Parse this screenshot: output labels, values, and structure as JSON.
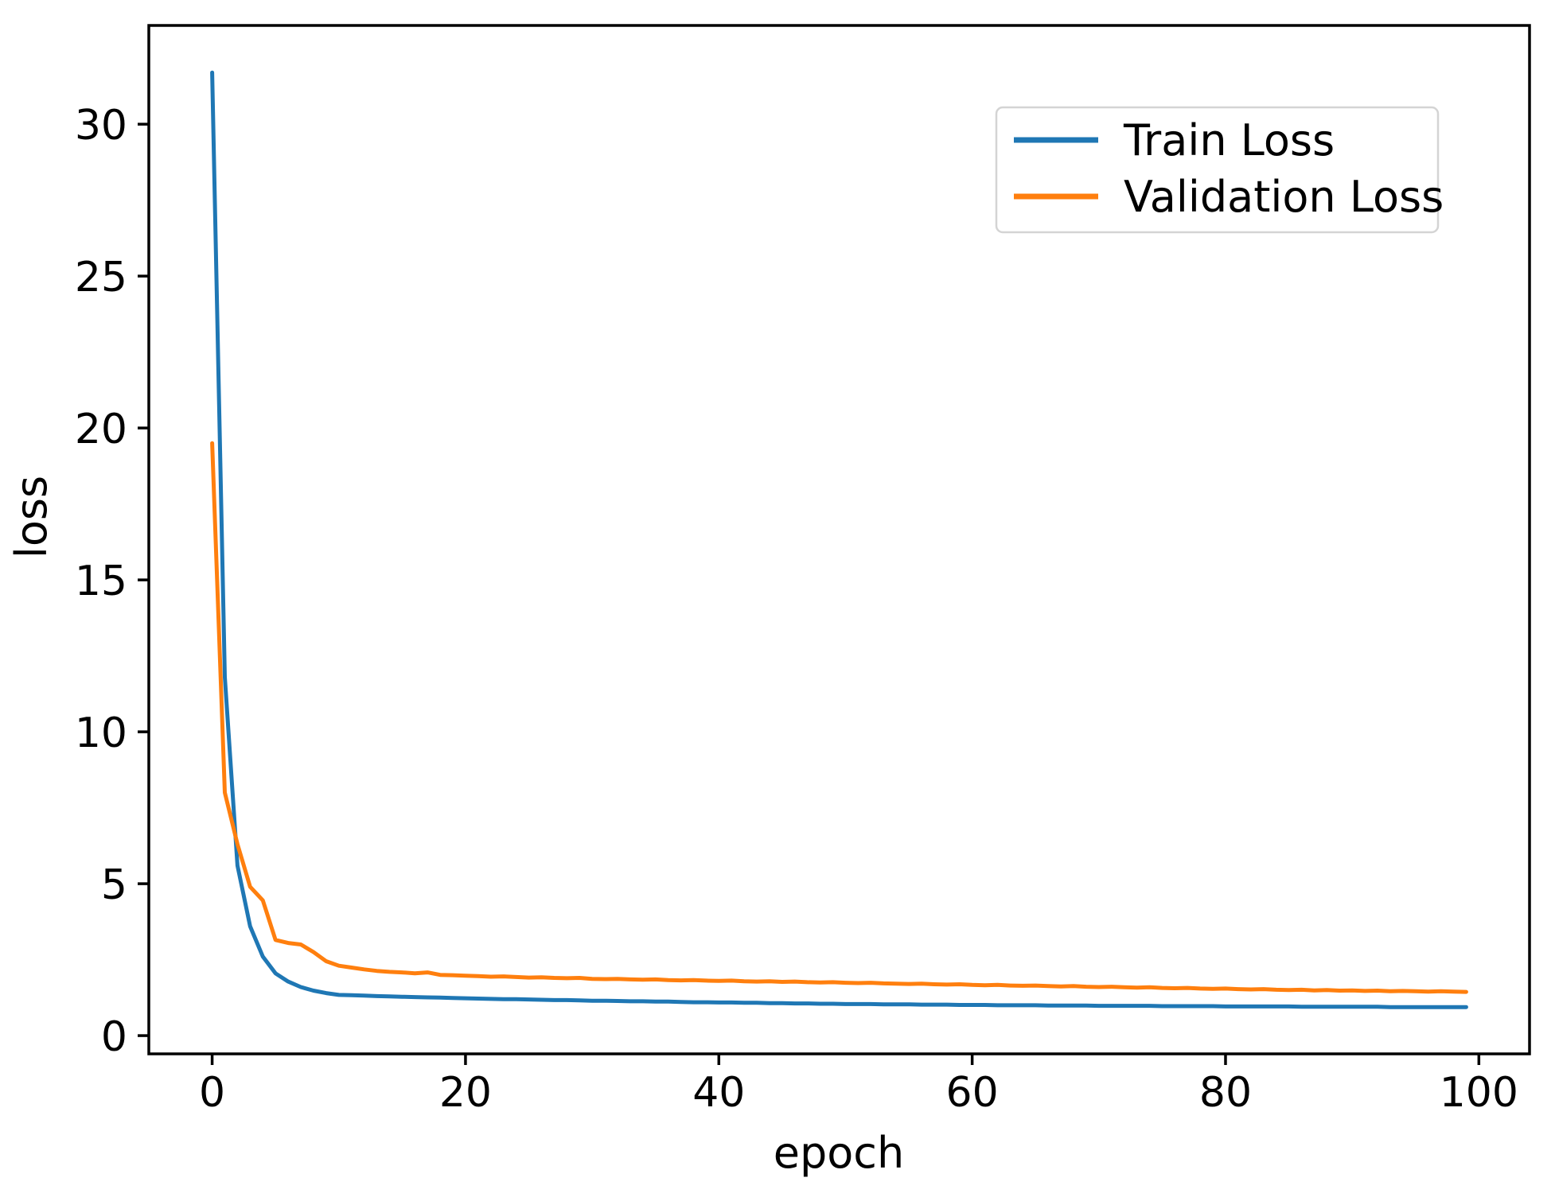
{
  "figure": {
    "background": "#ffffff",
    "frame_color": "#000000"
  },
  "chart_data": {
    "type": "line",
    "title": "",
    "xlabel": "epoch",
    "ylabel": "loss",
    "xlim": [
      -5,
      104
    ],
    "ylim": [
      -0.6,
      33.25
    ],
    "xticks": [
      0,
      20,
      40,
      60,
      80,
      100
    ],
    "yticks": [
      0,
      5,
      10,
      15,
      20,
      25,
      30
    ],
    "grid": false,
    "legend_position": "upper right",
    "x": [
      0,
      1,
      2,
      3,
      4,
      5,
      6,
      7,
      8,
      9,
      10,
      11,
      12,
      13,
      14,
      15,
      16,
      17,
      18,
      19,
      20,
      21,
      22,
      23,
      24,
      25,
      26,
      27,
      28,
      29,
      30,
      31,
      32,
      33,
      34,
      35,
      36,
      37,
      38,
      39,
      40,
      41,
      42,
      43,
      44,
      45,
      46,
      47,
      48,
      49,
      50,
      51,
      52,
      53,
      54,
      55,
      56,
      57,
      58,
      59,
      60,
      61,
      62,
      63,
      64,
      65,
      66,
      67,
      68,
      69,
      70,
      71,
      72,
      73,
      74,
      75,
      76,
      77,
      78,
      79,
      80,
      81,
      82,
      83,
      84,
      85,
      86,
      87,
      88,
      89,
      90,
      91,
      92,
      93,
      94,
      95,
      96,
      97,
      98,
      99
    ],
    "series": [
      {
        "name": "Train Loss",
        "color": "#1f77b4",
        "values": [
          31.7,
          11.8,
          5.6,
          3.6,
          2.6,
          2.05,
          1.78,
          1.6,
          1.48,
          1.4,
          1.34,
          1.33,
          1.32,
          1.3,
          1.29,
          1.28,
          1.27,
          1.26,
          1.25,
          1.24,
          1.23,
          1.22,
          1.21,
          1.2,
          1.2,
          1.19,
          1.18,
          1.17,
          1.17,
          1.16,
          1.15,
          1.15,
          1.14,
          1.13,
          1.13,
          1.12,
          1.12,
          1.11,
          1.1,
          1.1,
          1.09,
          1.09,
          1.08,
          1.08,
          1.07,
          1.07,
          1.06,
          1.06,
          1.05,
          1.05,
          1.04,
          1.04,
          1.04,
          1.03,
          1.03,
          1.03,
          1.02,
          1.02,
          1.02,
          1.01,
          1.01,
          1.01,
          1.0,
          1.0,
          1.0,
          1.0,
          0.99,
          0.99,
          0.99,
          0.99,
          0.98,
          0.98,
          0.98,
          0.98,
          0.98,
          0.97,
          0.97,
          0.97,
          0.97,
          0.97,
          0.96,
          0.96,
          0.96,
          0.96,
          0.96,
          0.96,
          0.95,
          0.95,
          0.95,
          0.95,
          0.95,
          0.95,
          0.95,
          0.94,
          0.94,
          0.94,
          0.94,
          0.94,
          0.94,
          0.94
        ]
      },
      {
        "name": "Validation Loss",
        "color": "#ff7f0e",
        "values": [
          19.5,
          8.0,
          6.3,
          4.9,
          4.45,
          3.15,
          3.05,
          3.0,
          2.75,
          2.45,
          2.3,
          2.24,
          2.18,
          2.13,
          2.1,
          2.08,
          2.05,
          2.08,
          2.0,
          1.99,
          1.97,
          1.96,
          1.94,
          1.95,
          1.93,
          1.91,
          1.92,
          1.9,
          1.89,
          1.9,
          1.87,
          1.86,
          1.87,
          1.85,
          1.84,
          1.85,
          1.83,
          1.82,
          1.83,
          1.81,
          1.8,
          1.81,
          1.79,
          1.78,
          1.79,
          1.77,
          1.78,
          1.76,
          1.75,
          1.76,
          1.74,
          1.73,
          1.74,
          1.72,
          1.71,
          1.7,
          1.71,
          1.69,
          1.68,
          1.69,
          1.67,
          1.66,
          1.67,
          1.65,
          1.64,
          1.65,
          1.63,
          1.62,
          1.63,
          1.61,
          1.6,
          1.61,
          1.59,
          1.58,
          1.59,
          1.57,
          1.56,
          1.57,
          1.55,
          1.54,
          1.55,
          1.53,
          1.52,
          1.53,
          1.51,
          1.5,
          1.51,
          1.49,
          1.5,
          1.48,
          1.49,
          1.47,
          1.48,
          1.46,
          1.47,
          1.46,
          1.45,
          1.46,
          1.45,
          1.44
        ]
      }
    ]
  }
}
